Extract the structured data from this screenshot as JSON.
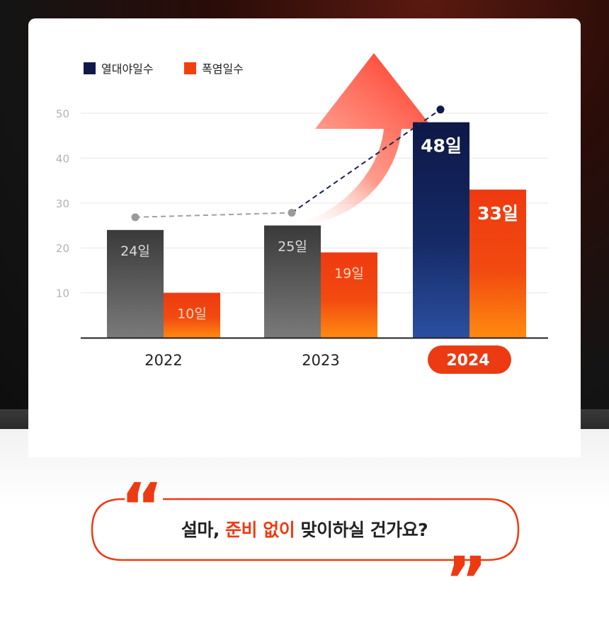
{
  "chart_data": {
    "type": "bar",
    "categories": [
      "2022",
      "2023",
      "2024"
    ],
    "highlight_category": "2024",
    "series": [
      {
        "name": "열대야일수",
        "values": [
          24,
          25,
          48
        ],
        "labels": [
          "24일",
          "25일",
          "48일"
        ],
        "color": "#0f1a4a"
      },
      {
        "name": "폭염일수",
        "values": [
          10,
          19,
          33
        ],
        "labels": [
          "10일",
          "19일",
          "33일"
        ],
        "color": "#f23f0f"
      }
    ],
    "yticks": [
      10,
      20,
      30,
      40,
      50
    ],
    "ylim": [
      0,
      50
    ],
    "grid": true,
    "legend_position": "top-left",
    "trend_line": {
      "series": "열대야일수",
      "style": "dashed"
    }
  },
  "caption": {
    "part1": "설마, ",
    "highlight": "준비 없이",
    "part2": " 맞이하실 건가요?"
  },
  "colors": {
    "accent": "#ec3b12",
    "navy": "#0f1a4a",
    "gray_bar": "#555555"
  }
}
